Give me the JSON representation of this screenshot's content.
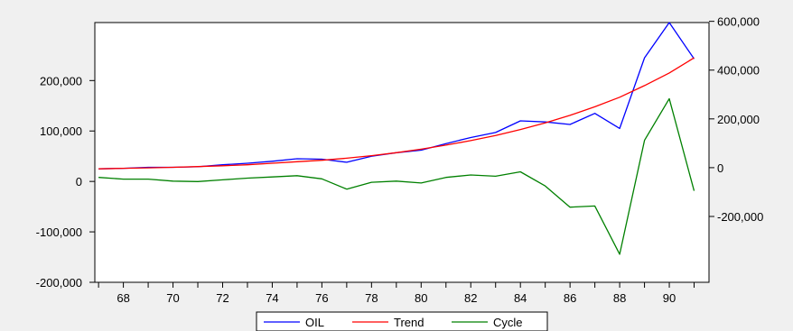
{
  "chart_data": {
    "type": "line",
    "title": "",
    "xlabel": "",
    "ylabel_left": "",
    "ylabel_right": "",
    "grid": false,
    "legend_position": "bottom-center",
    "x": [
      1967,
      1968,
      1969,
      1970,
      1971,
      1972,
      1973,
      1974,
      1975,
      1976,
      1977,
      1978,
      1979,
      1980,
      1981,
      1982,
      1983,
      1984,
      1985,
      1986,
      1987,
      1988,
      1989,
      1990,
      1991
    ],
    "x_tick_values": [
      1968,
      1970,
      1972,
      1974,
      1976,
      1978,
      1980,
      1982,
      1984,
      1986,
      1988,
      1990
    ],
    "x_tick_labels": [
      "68",
      "70",
      "72",
      "74",
      "76",
      "78",
      "80",
      "82",
      "84",
      "86",
      "88",
      "90"
    ],
    "xlim": [
      1966.85,
      1991.6
    ],
    "left_axis": {
      "ylim": [
        -200000,
        315000
      ],
      "ticks": [
        -200000,
        -100000,
        0,
        100000,
        200000
      ],
      "tick_labels": [
        "-200,000",
        "-100,000",
        "0",
        "100,000",
        "200,000"
      ]
    },
    "right_axis": {
      "ylim": [
        -470000,
        595000
      ],
      "ticks": [
        -200000,
        0,
        200000,
        400000,
        600000
      ],
      "tick_labels": [
        "-200,000",
        "0",
        "200,000",
        "400,000",
        "600,000"
      ]
    },
    "series": [
      {
        "name": "OIL",
        "axis": "left",
        "color": "#0000ff",
        "values": [
          25000,
          26000,
          28000,
          28000,
          29000,
          33000,
          36000,
          40000,
          45000,
          44000,
          38000,
          50000,
          57000,
          62000,
          75000,
          87000,
          97000,
          120000,
          118000,
          113000,
          135000,
          105000,
          245000,
          315000,
          243000
        ]
      },
      {
        "name": "Trend",
        "axis": "left",
        "color": "#ff0000",
        "values": [
          25000,
          26000,
          27000,
          28000,
          29500,
          31000,
          33000,
          36000,
          39000,
          42000,
          46000,
          51000,
          57000,
          64000,
          72000,
          81000,
          91000,
          103000,
          116000,
          131000,
          148000,
          167000,
          190000,
          215000,
          245000
        ]
      },
      {
        "name": "Cycle",
        "axis": "right",
        "color": "#008000",
        "values": [
          -40000,
          -47000,
          -47000,
          -55000,
          -57000,
          -50000,
          -43000,
          -38000,
          -33000,
          -46000,
          -88000,
          -60000,
          -55000,
          -63000,
          -40000,
          -30000,
          -35000,
          -17000,
          -75000,
          -162000,
          -157000,
          -355000,
          112000,
          283000,
          -95000
        ]
      }
    ]
  }
}
